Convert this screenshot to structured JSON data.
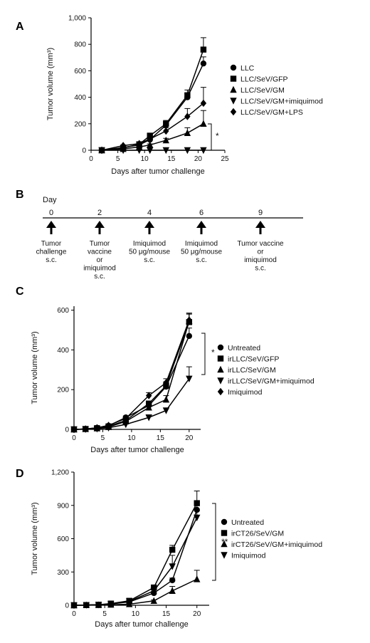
{
  "panels": {
    "A": "A",
    "B": "B",
    "C": "C",
    "D": "D"
  },
  "chart_data": [
    {
      "panel": "A",
      "type": "line",
      "ylabel": "Tumor volume (mm³)",
      "xlabel": "Days after tumor challenge",
      "xlim": [
        0,
        25
      ],
      "ylim": [
        0,
        1000
      ],
      "xticks": [
        0,
        5,
        10,
        15,
        20,
        25
      ],
      "yticks": [
        0,
        200,
        400,
        600,
        800,
        1000
      ],
      "ytick_labels": [
        "0",
        "200",
        "400",
        "600",
        "800",
        "1,000"
      ],
      "significance": "*",
      "legend_position": "right",
      "series": [
        {
          "name": "LLC",
          "marker": "circle",
          "x": [
            2,
            6,
            9,
            11,
            14,
            18,
            21
          ],
          "y": [
            0,
            20,
            40,
            80,
            190,
            400,
            655
          ],
          "err": [
            0,
            5,
            8,
            12,
            20,
            30,
            50
          ]
        },
        {
          "name": "LLC/SeV/GFP",
          "marker": "square",
          "x": [
            2,
            6,
            9,
            11,
            14,
            18,
            21
          ],
          "y": [
            0,
            18,
            45,
            110,
            200,
            415,
            760
          ],
          "err": [
            0,
            5,
            10,
            15,
            25,
            40,
            90
          ]
        },
        {
          "name": "LLC/SeV/GM",
          "marker": "triangle-up",
          "x": [
            2,
            6,
            9,
            11,
            14,
            18,
            21
          ],
          "y": [
            0,
            10,
            25,
            40,
            75,
            130,
            200
          ],
          "err": [
            0,
            3,
            5,
            8,
            15,
            40,
            100
          ]
        },
        {
          "name": "LLC/SeV/GM+imiquimod",
          "marker": "triangle-down",
          "x": [
            2,
            6,
            9,
            11,
            14,
            18,
            21
          ],
          "y": [
            0,
            0,
            0,
            0,
            0,
            0,
            0
          ],
          "err": [
            0,
            0,
            0,
            0,
            0,
            0,
            0
          ]
        },
        {
          "name": "LLC/SeV/GM+LPS",
          "marker": "diamond",
          "x": [
            2,
            6,
            9,
            11,
            14,
            18,
            21
          ],
          "y": [
            0,
            35,
            50,
            85,
            145,
            255,
            355
          ],
          "err": [
            0,
            5,
            10,
            15,
            25,
            60,
            120
          ]
        }
      ]
    },
    {
      "panel": "C",
      "type": "line",
      "ylabel": "Tumor volume (mm³)",
      "xlabel": "Days after tumor challenge",
      "xlim": [
        0,
        22
      ],
      "ylim": [
        0,
        620
      ],
      "xticks": [
        0,
        5,
        10,
        15,
        20
      ],
      "yticks": [
        0,
        200,
        400,
        600
      ],
      "ytick_labels": [
        "0",
        "200",
        "400",
        "600"
      ],
      "significance": "*",
      "legend_position": "right",
      "series": [
        {
          "name": "Untreated",
          "marker": "circle",
          "x": [
            0,
            2,
            4,
            6,
            9,
            13,
            16,
            20
          ],
          "y": [
            0,
            2,
            8,
            18,
            60,
            120,
            215,
            470
          ],
          "err": [
            0,
            0,
            2,
            4,
            8,
            12,
            18,
            40
          ]
        },
        {
          "name": "irLLC/SeV/GFP",
          "marker": "square",
          "x": [
            0,
            2,
            4,
            6,
            9,
            13,
            16,
            20
          ],
          "y": [
            0,
            2,
            6,
            15,
            45,
            130,
            220,
            540
          ],
          "err": [
            0,
            0,
            2,
            4,
            8,
            12,
            20,
            40
          ]
        },
        {
          "name": "irLLC/SeV/GM",
          "marker": "triangle-up",
          "x": [
            0,
            2,
            4,
            6,
            9,
            13,
            16,
            20
          ],
          "y": [
            0,
            2,
            5,
            12,
            40,
            110,
            150,
            545
          ],
          "err": [
            0,
            0,
            2,
            3,
            6,
            12,
            20,
            40
          ]
        },
        {
          "name": "irLLC/SeV/GM+imiquimod",
          "marker": "triangle-down",
          "x": [
            0,
            2,
            4,
            6,
            9,
            13,
            16,
            20
          ],
          "y": [
            0,
            1,
            3,
            8,
            25,
            60,
            95,
            255
          ],
          "err": [
            0,
            0,
            1,
            2,
            4,
            8,
            10,
            60
          ]
        },
        {
          "name": "Imiquimod",
          "marker": "diamond",
          "x": [
            0,
            2,
            4,
            6,
            9,
            13,
            16,
            20
          ],
          "y": [
            0,
            2,
            8,
            20,
            55,
            170,
            235,
            550
          ],
          "err": [
            0,
            0,
            2,
            4,
            8,
            15,
            20,
            35
          ]
        }
      ]
    },
    {
      "panel": "D",
      "type": "line",
      "ylabel": "Tumor volume (mm³)",
      "xlabel": "Days after tumor challenge",
      "xlim": [
        0,
        22
      ],
      "ylim": [
        0,
        1200
      ],
      "xticks": [
        0,
        5,
        10,
        15,
        20
      ],
      "yticks": [
        0,
        300,
        600,
        900,
        1200
      ],
      "ytick_labels": [
        "0",
        "300",
        "600",
        "900",
        "1,200"
      ],
      "significance": "**",
      "legend_position": "right",
      "series": [
        {
          "name": "Untreated",
          "marker": "circle",
          "x": [
            0,
            2,
            4,
            6,
            9,
            13,
            16,
            20
          ],
          "y": [
            0,
            2,
            5,
            12,
            30,
            110,
            225,
            860
          ],
          "err": [
            0,
            0,
            2,
            3,
            6,
            15,
            20,
            50
          ]
        },
        {
          "name": "irCT26/SeV/GM",
          "marker": "square",
          "x": [
            0,
            2,
            4,
            6,
            9,
            13,
            16,
            20
          ],
          "y": [
            0,
            2,
            5,
            15,
            40,
            160,
            500,
            920
          ],
          "err": [
            0,
            0,
            2,
            3,
            6,
            20,
            40,
            110
          ]
        },
        {
          "name": "irCT26/SeV/GM+imiquimod",
          "marker": "triangle-up",
          "x": [
            0,
            2,
            4,
            6,
            9,
            13,
            16,
            20
          ],
          "y": [
            0,
            1,
            2,
            5,
            10,
            40,
            130,
            235
          ],
          "err": [
            0,
            0,
            1,
            2,
            3,
            8,
            40,
            80
          ]
        },
        {
          "name": "Imiquimod",
          "marker": "triangle-down",
          "x": [
            0,
            2,
            4,
            6,
            9,
            13,
            16,
            20
          ],
          "y": [
            0,
            2,
            5,
            12,
            35,
            130,
            350,
            790
          ],
          "err": [
            0,
            0,
            2,
            3,
            5,
            15,
            100,
            60
          ]
        }
      ]
    }
  ],
  "timeline": {
    "header": "Day",
    "days": [
      {
        "day": "0",
        "lines": [
          "Tumor",
          "challenge",
          "s.c."
        ]
      },
      {
        "day": "2",
        "lines": [
          "Tumor",
          "vaccine",
          "or",
          "imiquimod",
          "s.c."
        ]
      },
      {
        "day": "4",
        "lines": [
          "Imiquimod",
          "50 μg/mouse",
          "s.c."
        ]
      },
      {
        "day": "6",
        "lines": [
          "Imiquimod",
          "50 μg/mouse",
          "s.c."
        ]
      },
      {
        "day": "9",
        "lines": [
          "Tumor vaccine",
          "or",
          "imiquimod",
          "s.c."
        ]
      }
    ]
  }
}
